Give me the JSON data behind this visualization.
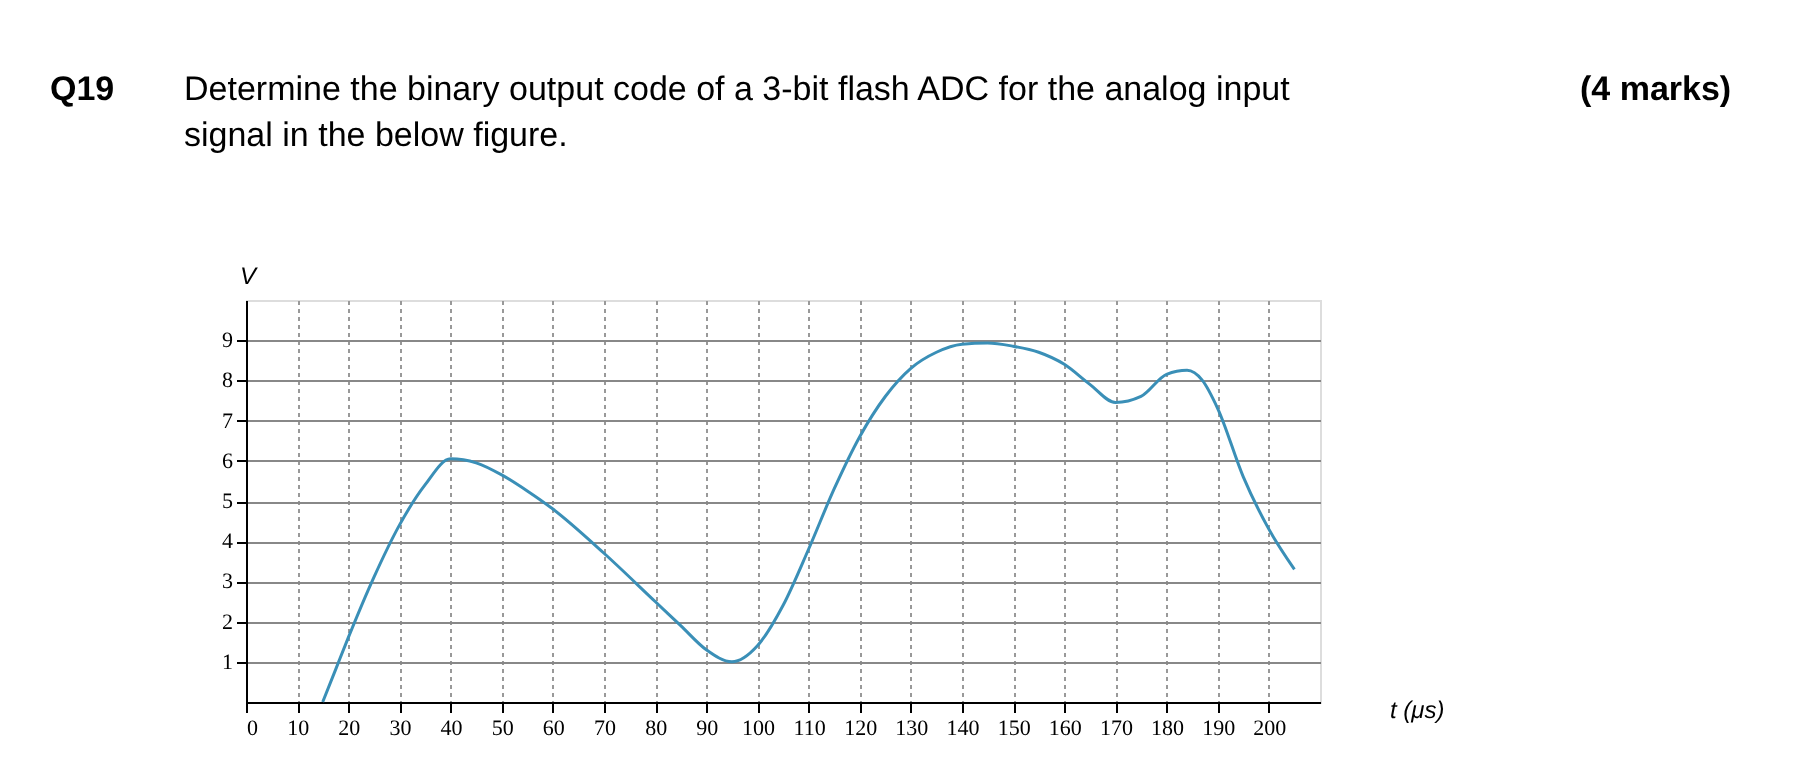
{
  "chart_data": {
    "type": "line",
    "title": "Determine the binary output code of a 3-bit flash ADC for the analog input signal in the below figure.",
    "annotations": [
      "Q19",
      "(4 marks)"
    ],
    "xlabel": "t (μs)",
    "ylabel": "V",
    "x": [
      15,
      17.5,
      20,
      25,
      30,
      35,
      40,
      45,
      50,
      55,
      60,
      70,
      80,
      85,
      90,
      95,
      100,
      105,
      110,
      115,
      120,
      125,
      130,
      135,
      140,
      145,
      150,
      155,
      160,
      165,
      170,
      175,
      180,
      184,
      187,
      190,
      195,
      200,
      205
    ],
    "series": [
      {
        "color": "#3a8fb7",
        "values": [
          0,
          0.8,
          1.6,
          3.1,
          4.4,
          5.4,
          6.05,
          5.95,
          5.65,
          5.25,
          4.8,
          3.7,
          2.5,
          1.9,
          1.3,
          1.0,
          1.4,
          2.4,
          3.8,
          5.3,
          6.6,
          7.6,
          8.3,
          8.7,
          8.9,
          8.93,
          8.85,
          8.7,
          8.4,
          7.9,
          7.45,
          7.6,
          8.15,
          8.25,
          8.0,
          7.3,
          5.6,
          4.3,
          3.3
        ]
      }
    ],
    "xlim": [
      0,
      210
    ],
    "ylim": [
      0,
      10
    ],
    "xticks": [
      0,
      10,
      20,
      30,
      40,
      50,
      60,
      70,
      80,
      90,
      100,
      110,
      120,
      130,
      140,
      150,
      160,
      170,
      180,
      190,
      200
    ],
    "yticks": [
      1,
      2,
      3,
      4,
      5,
      6,
      7,
      8,
      9
    ],
    "grid": true,
    "marker": "none",
    "line_style": "solid"
  }
}
